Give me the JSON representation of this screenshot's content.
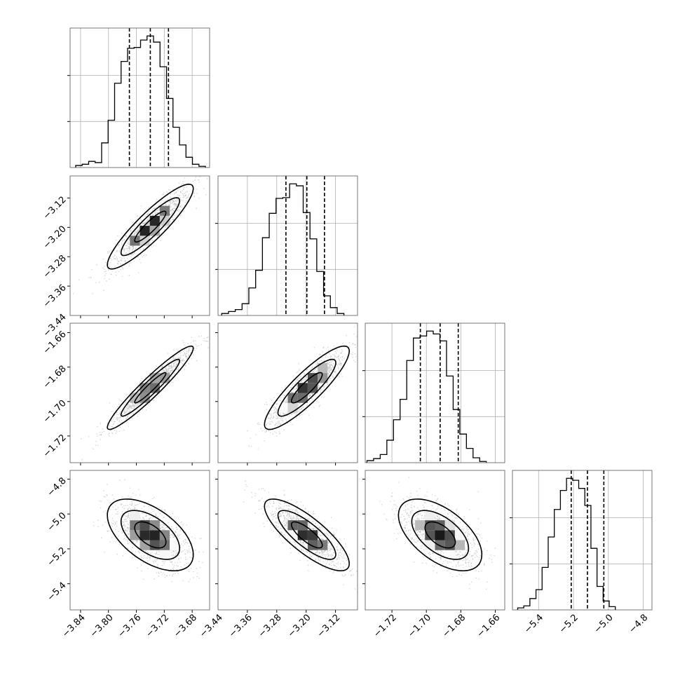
{
  "chart_data": {
    "type": "corner",
    "parameters": [
      {
        "range": [
          -3.855,
          -3.655
        ],
        "ticks": [
          -3.84,
          -3.8,
          -3.76,
          -3.72,
          -3.68
        ],
        "tick_labels": [
          "−3.84",
          "−3.80",
          "−3.76",
          "−3.72",
          "−3.68"
        ],
        "quantiles": [
          -3.77,
          -3.74,
          -3.714
        ],
        "hist_edges_start": -3.847,
        "hist_edges_step": 0.0093,
        "hist_counts": [
          5,
          8,
          15,
          12,
          60,
          115,
          205,
          258,
          290,
          292,
          310,
          320,
          305,
          245,
          168,
          98,
          55,
          25,
          8,
          3
        ]
      },
      {
        "range": [
          -3.44,
          -3.06
        ],
        "ticks": [
          -3.44,
          -3.36,
          -3.28,
          -3.2,
          -3.12
        ],
        "tick_labels": [
          "−3.44",
          "−3.36",
          "−3.28",
          "−3.20",
          "−3.12"
        ],
        "quantiles": [
          -3.255,
          -3.198,
          -3.15
        ],
        "hist_edges_start": -3.43,
        "hist_edges_step": 0.0185,
        "hist_counts": [
          5,
          10,
          15,
          30,
          70,
          115,
          198,
          260,
          298,
          300,
          335,
          330,
          262,
          195,
          112,
          50,
          20,
          5
        ]
      },
      {
        "range": [
          -1.7355,
          -1.6545
        ],
        "ticks": [
          -1.72,
          -1.7,
          -1.68,
          -1.66
        ],
        "tick_labels": [
          "−1.72",
          "−1.70",
          "−1.68",
          "−1.66"
        ],
        "quantiles": [
          -1.7035,
          -1.692,
          -1.6815
        ],
        "hist_edges_start": -1.7345,
        "hist_edges_step": 0.00385,
        "hist_counts": [
          5,
          10,
          20,
          55,
          105,
          155,
          250,
          305,
          310,
          322,
          315,
          298,
          212,
          130,
          70,
          35,
          12,
          3
        ]
      },
      {
        "range": [
          -5.55,
          -4.75
        ],
        "ticks": [
          -5.4,
          -5.2,
          -5.0,
          -4.8
        ],
        "tick_labels": [
          "−5.4",
          "−5.2",
          "−5.0",
          "−4.8"
        ],
        "quantiles": [
          -5.213,
          -5.12,
          -5.026
        ],
        "hist_edges_start": -5.52,
        "hist_edges_step": 0.035,
        "hist_counts": [
          5,
          10,
          28,
          50,
          105,
          180,
          248,
          295,
          325,
          320,
          300,
          258,
          152,
          58,
          22,
          8
        ]
      }
    ],
    "correlations": [
      [
        1.0,
        0.9,
        0.95,
        -0.55
      ],
      [
        0.9,
        1.0,
        0.88,
        -0.8
      ],
      [
        0.95,
        0.88,
        1.0,
        -0.55
      ],
      [
        -0.55,
        -0.8,
        -0.55,
        1.0
      ]
    ],
    "grid": true,
    "colors": {
      "line": "#000000",
      "grid": "#b0b0b0",
      "points": "#bbbbbb"
    }
  }
}
